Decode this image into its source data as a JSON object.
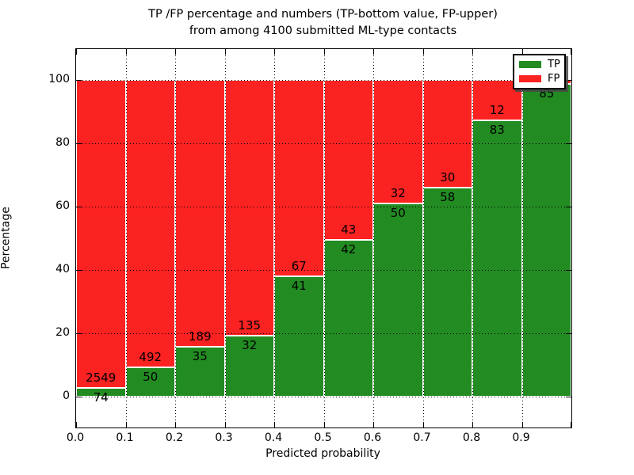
{
  "header": {
    "title_line1": "TP /FP percentage and numbers (TP-bottom value, FP-upper)",
    "title_line2": "from among 4100 submitted ML-type contacts"
  },
  "colors": {
    "tp_green": "#228B22",
    "fp_red": "#fb2222",
    "grid": "#000000",
    "legend_shadow": "#464646"
  },
  "legend": {
    "position": "upper right",
    "items": [
      {
        "label": "TP",
        "color_key": "tp_green"
      },
      {
        "label": "FP",
        "color_key": "fp_red"
      }
    ]
  },
  "chart_data": {
    "type": "bar",
    "stacked": true,
    "orientation": "vertical",
    "title": "TP /FP percentage and numbers (TP-bottom value, FP-upper) from among 4100 submitted ML-type contacts",
    "xlabel": "Predicted probability",
    "ylabel": "Percentage",
    "total_contacts": 4100,
    "bin_width": 0.1,
    "bin_starts": [
      0.0,
      0.1,
      0.2,
      0.3,
      0.4,
      0.5,
      0.6,
      0.7,
      0.8,
      0.9
    ],
    "x_tick_labels": [
      "0.0",
      "0.1",
      "0.2",
      "0.3",
      "0.4",
      "0.5",
      "0.6",
      "0.7",
      "0.8",
      "0.9"
    ],
    "y_ticks": [
      0,
      20,
      40,
      60,
      80,
      100
    ],
    "y_tick_labels": [
      "0",
      "20",
      "40",
      "60",
      "80",
      "100"
    ],
    "xlim": [
      0.0,
      1.0
    ],
    "ylim": [
      -10,
      110
    ],
    "grid": "dotted both axes, drawn over bars",
    "bar_edge_color": "#ffffff",
    "series": [
      {
        "name": "TP",
        "counts": [
          74,
          50,
          35,
          32,
          41,
          42,
          50,
          58,
          83,
          85
        ]
      },
      {
        "name": "FP",
        "counts": [
          2549,
          492,
          189,
          135,
          67,
          43,
          32,
          30,
          12,
          null
        ]
      }
    ],
    "tp_pct": [
      2.82,
      9.23,
      15.63,
      19.16,
      37.96,
      49.41,
      60.98,
      65.91,
      87.37,
      98.84
    ],
    "note_fp_last_bin_label": ""
  }
}
